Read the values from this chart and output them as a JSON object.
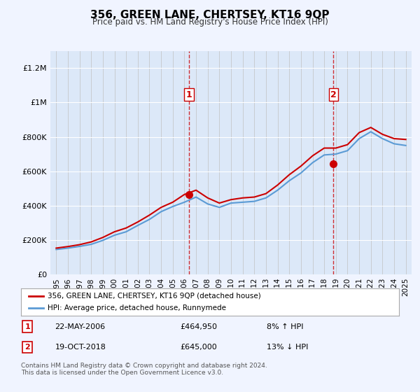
{
  "title": "356, GREEN LANE, CHERTSEY, KT16 9QP",
  "subtitle": "Price paid vs. HM Land Registry's House Price Index (HPI)",
  "xlabel": "",
  "ylabel": "",
  "background_color": "#f0f4ff",
  "plot_bg_color": "#dce8f8",
  "legend_label_red": "356, GREEN LANE, CHERTSEY, KT16 9QP (detached house)",
  "legend_label_blue": "HPI: Average price, detached house, Runnymede",
  "sale1_date": "22-MAY-2006",
  "sale1_price": 464950,
  "sale1_hpi_diff": "8% ↑ HPI",
  "sale2_date": "19-OCT-2018",
  "sale2_price": 645000,
  "sale2_hpi_diff": "13% ↓ HPI",
  "footnote": "Contains HM Land Registry data © Crown copyright and database right 2024.\nThis data is licensed under the Open Government Licence v3.0.",
  "red_color": "#cc0000",
  "blue_color": "#5b9bd5",
  "vline_color": "#cc0000",
  "dot_color": "#cc0000",
  "yticks": [
    0,
    200000,
    400000,
    600000,
    800000,
    1000000,
    1200000
  ],
  "ytick_labels": [
    "£0",
    "£200K",
    "£400K",
    "£600K",
    "£800K",
    "£1M",
    "£1.2M"
  ],
  "xlim_start": 1994.5,
  "xlim_end": 2025.5,
  "ylim_min": 0,
  "ylim_max": 1300000,
  "hpi_years": [
    1995,
    1996,
    1997,
    1998,
    1999,
    2000,
    2001,
    2002,
    2003,
    2004,
    2005,
    2006,
    2007,
    2008,
    2009,
    2010,
    2011,
    2012,
    2013,
    2014,
    2015,
    2016,
    2017,
    2018,
    2019,
    2020,
    2021,
    2022,
    2023,
    2024,
    2025
  ],
  "hpi_values": [
    145000,
    153000,
    163000,
    175000,
    198000,
    228000,
    248000,
    285000,
    320000,
    365000,
    395000,
    420000,
    450000,
    410000,
    390000,
    415000,
    420000,
    425000,
    445000,
    490000,
    545000,
    590000,
    650000,
    695000,
    700000,
    720000,
    790000,
    830000,
    790000,
    760000,
    750000
  ],
  "price_years": [
    1995,
    1996,
    1997,
    1998,
    1999,
    2000,
    2001,
    2002,
    2003,
    2004,
    2005,
    2006,
    2007,
    2008,
    2009,
    2010,
    2011,
    2012,
    2013,
    2014,
    2015,
    2016,
    2017,
    2018,
    2019,
    2020,
    2021,
    2022,
    2023,
    2024,
    2025
  ],
  "price_values": [
    153000,
    162000,
    173000,
    189000,
    215000,
    248000,
    270000,
    305000,
    345000,
    390000,
    420000,
    465000,
    490000,
    445000,
    415000,
    435000,
    445000,
    450000,
    470000,
    520000,
    580000,
    630000,
    690000,
    735000,
    735000,
    755000,
    825000,
    855000,
    815000,
    790000,
    785000
  ],
  "sale1_x": 2006.39,
  "sale2_x": 2018.8
}
